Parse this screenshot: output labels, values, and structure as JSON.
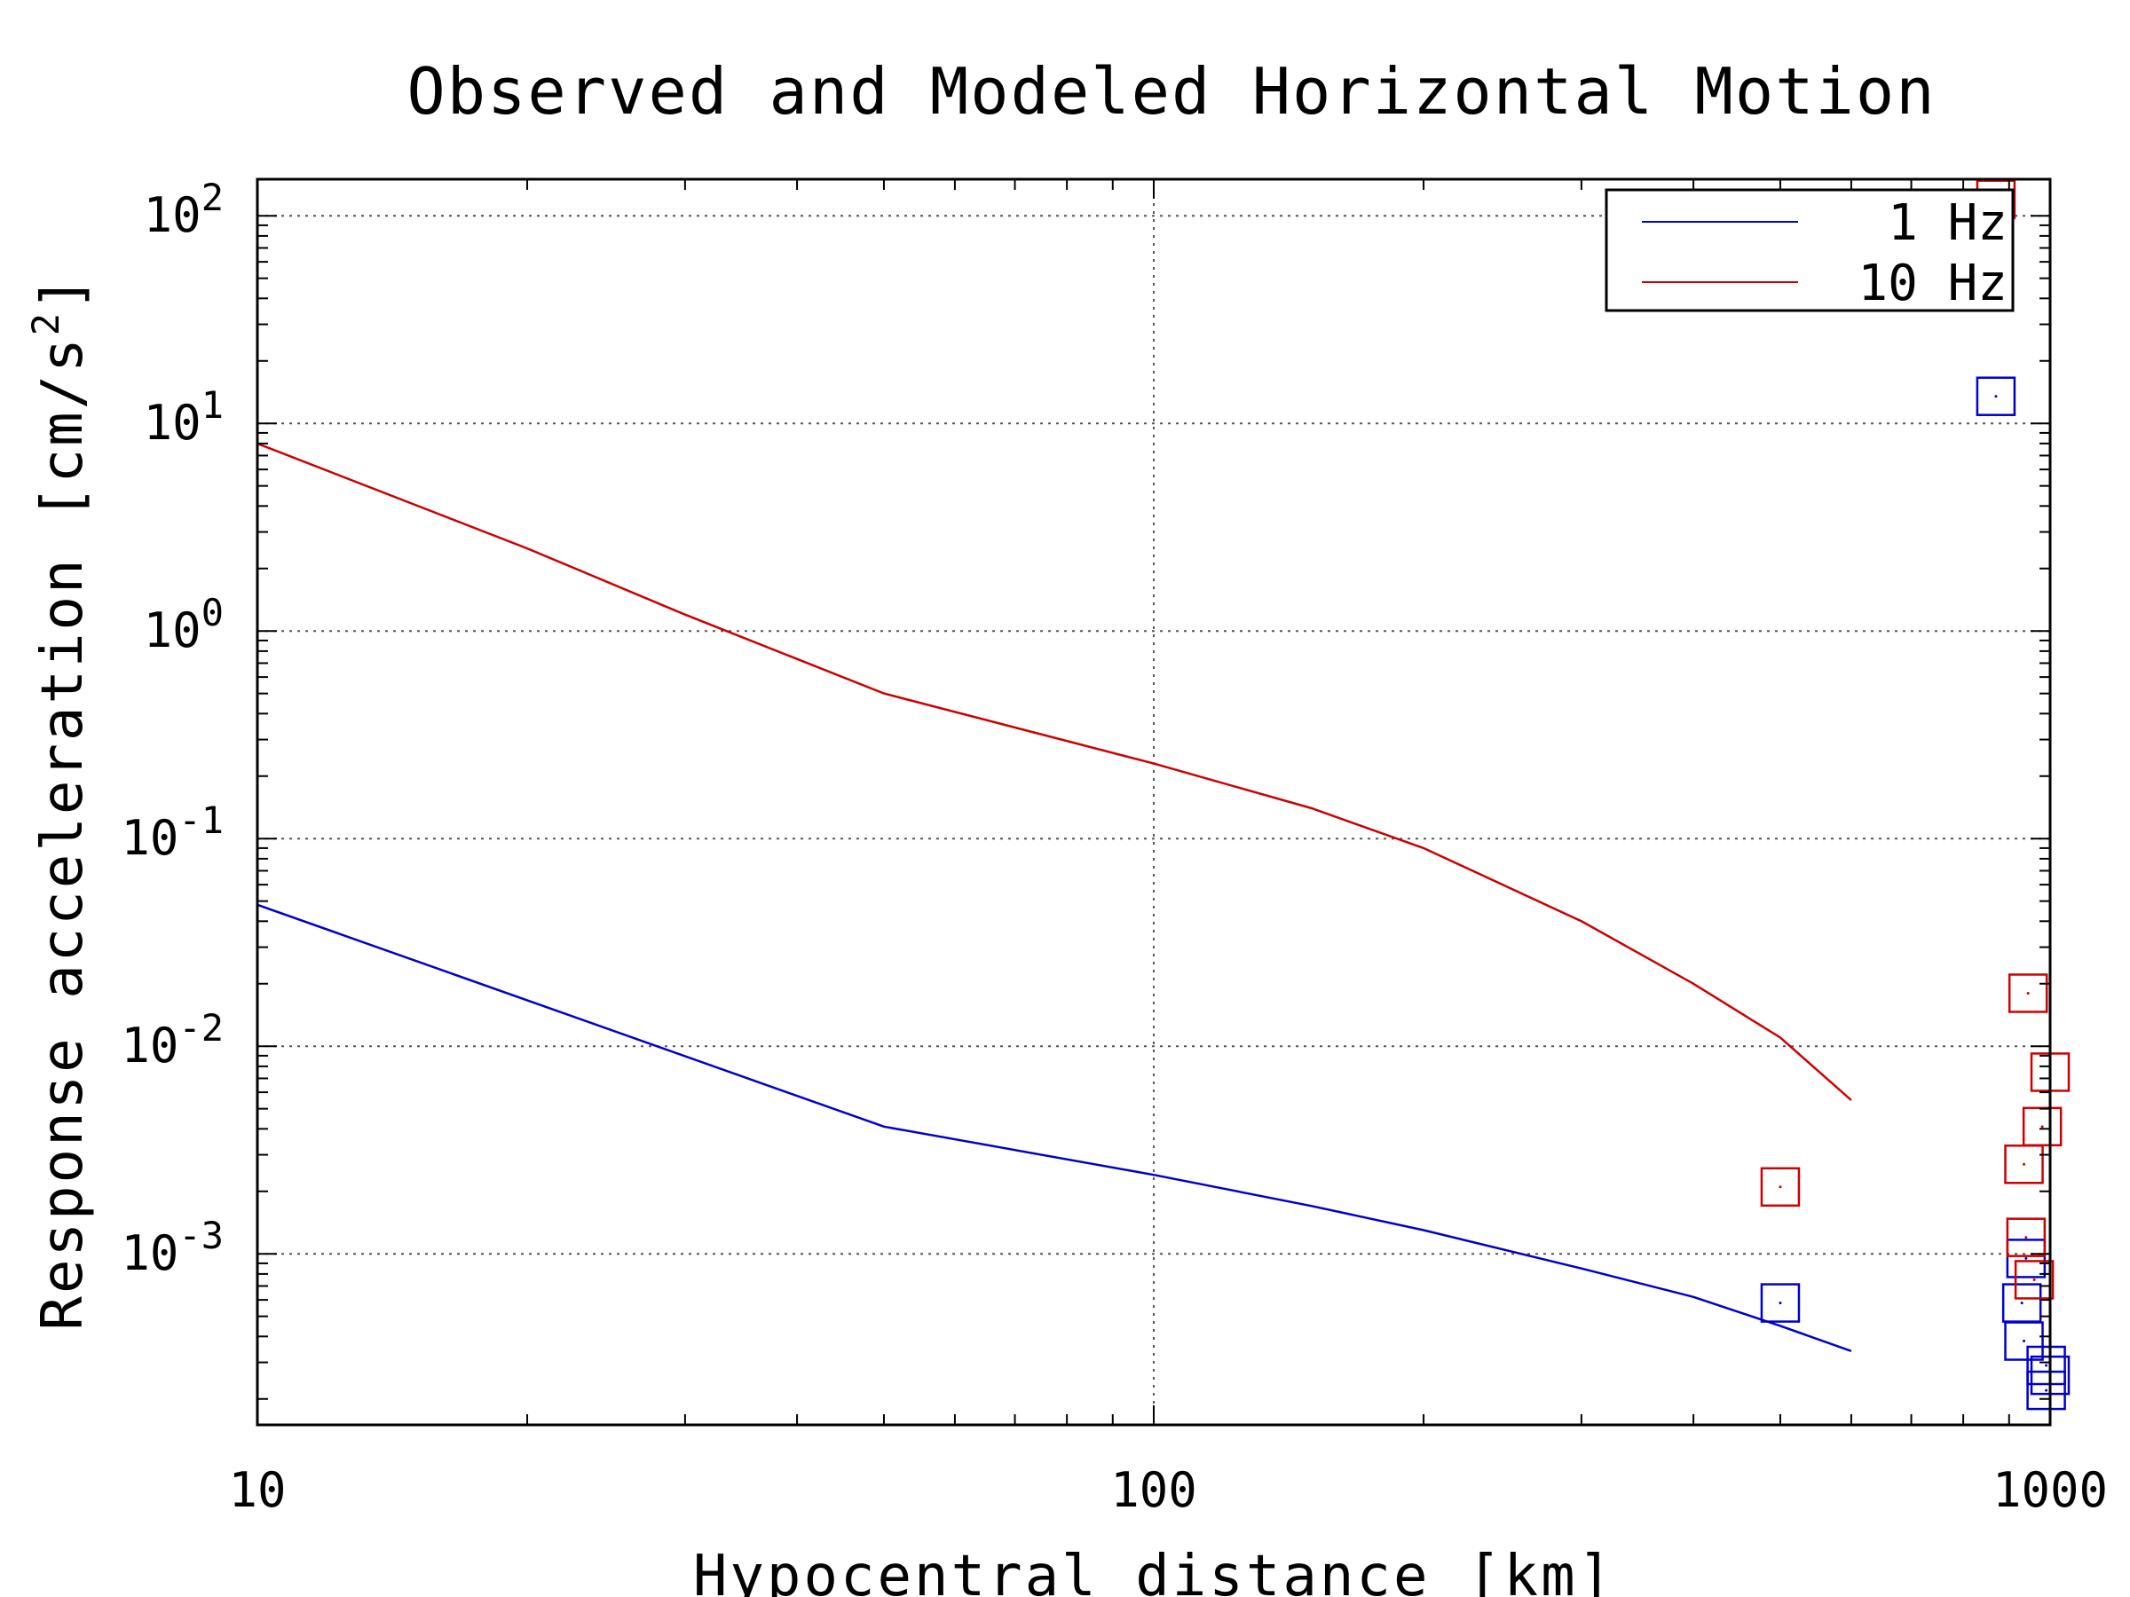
{
  "chart_data": {
    "type": "line",
    "title": "Observed and Modeled Horizontal Motion",
    "xlabel": "Hypocentral distance [km]",
    "ylabel_main": "Response acceleration [cm/s",
    "ylabel_sup": "2",
    "ylabel_end": "]",
    "xscale": "log",
    "yscale": "log",
    "xlim": [
      10,
      1000
    ],
    "ylim": [
      0.00015,
      150
    ],
    "grid": true,
    "legend_position": "top-right",
    "x_ticks": [
      {
        "value": 10,
        "label": "10"
      },
      {
        "value": 100,
        "label": "100"
      },
      {
        "value": 1000,
        "label": "1000"
      }
    ],
    "y_ticks": [
      {
        "value": 100,
        "base": "10",
        "exp": "2"
      },
      {
        "value": 10,
        "base": "10",
        "exp": "1"
      },
      {
        "value": 1,
        "base": "10",
        "exp": "0"
      },
      {
        "value": 0.1,
        "base": "10",
        "exp": "-1"
      },
      {
        "value": 0.01,
        "base": "10",
        "exp": "-2"
      },
      {
        "value": 0.001,
        "base": "10",
        "exp": "-3"
      }
    ],
    "series": [
      {
        "name": "1 Hz",
        "color": "#0000cc",
        "line": {
          "x": [
            10,
            50,
            100,
            150,
            200,
            300,
            400,
            500,
            600
          ],
          "y": [
            0.048,
            0.0041,
            0.0024,
            0.0017,
            0.0013,
            0.00085,
            0.00062,
            0.00045,
            0.00034
          ]
        },
        "observed": {
          "x": [
            500,
            870,
            940,
            930,
            935,
            990,
            1000,
            990
          ],
          "y": [
            0.00058,
            13.5,
            0.00095,
            0.00058,
            0.00038,
            0.00029,
            0.00026,
            0.00022
          ]
        }
      },
      {
        "name": "10 Hz",
        "color": "#cc0000",
        "line": {
          "x": [
            10,
            20,
            30,
            50,
            100,
            150,
            200,
            300,
            400,
            500,
            600
          ],
          "y": [
            8,
            2.5,
            1.2,
            0.5,
            0.23,
            0.14,
            0.09,
            0.04,
            0.02,
            0.011,
            0.0055
          ]
        },
        "observed": {
          "x": [
            500,
            870,
            945,
            1000,
            980,
            935,
            940,
            960
          ],
          "y": [
            0.0021,
            120,
            0.018,
            0.0075,
            0.0041,
            0.0027,
            0.0012,
            0.00075
          ]
        }
      }
    ]
  }
}
